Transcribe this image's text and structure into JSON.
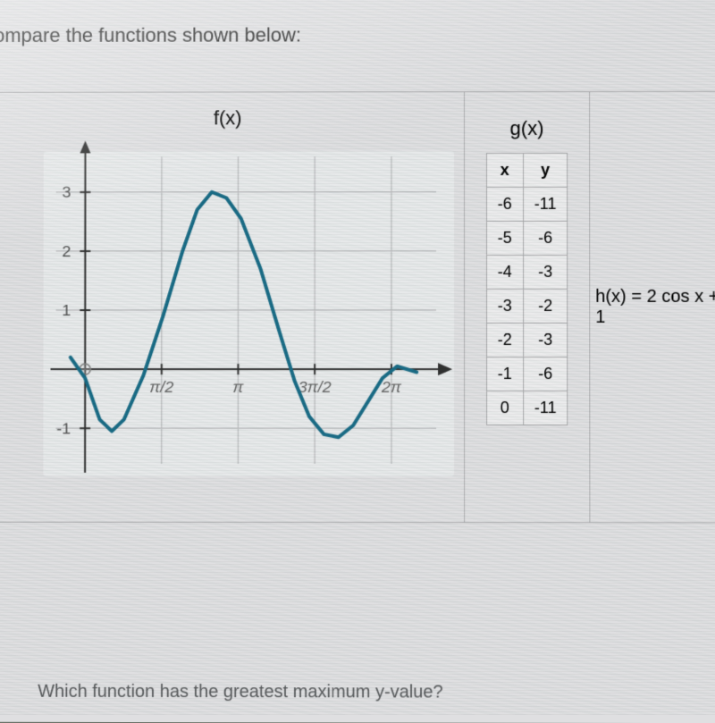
{
  "header_cut": "",
  "prompt": "ompare the functions shown below:",
  "question": "Which function has the greatest maximum y-value?",
  "fx": {
    "title": "f(x)",
    "chart": {
      "type": "line",
      "xlim": [
        -0.6,
        7.2
      ],
      "ylim": [
        -1.6,
        3.6
      ],
      "xticks": [
        {
          "pos": 1.5708,
          "label": "π/2"
        },
        {
          "pos": 3.1416,
          "label": "π"
        },
        {
          "pos": 4.7124,
          "label": "3π/2"
        },
        {
          "pos": 6.2832,
          "label": "2π"
        }
      ],
      "yticks": [
        {
          "pos": -1,
          "label": "-1"
        },
        {
          "pos": 1,
          "label": "1"
        },
        {
          "pos": 2,
          "label": "2"
        },
        {
          "pos": 3,
          "label": "3"
        }
      ],
      "curve_color": "#1b6f8a",
      "curve_width": 4,
      "grid_color": "#c5c6c8",
      "axis_color": "#333",
      "bg": "#eef0f1",
      "curve": [
        {
          "x": -0.3,
          "y": 0.2
        },
        {
          "x": 0.0,
          "y": -0.15
        },
        {
          "x": 0.3,
          "y": -0.85
        },
        {
          "x": 0.55,
          "y": -1.05
        },
        {
          "x": 0.8,
          "y": -0.85
        },
        {
          "x": 1.2,
          "y": -0.1
        },
        {
          "x": 1.6,
          "y": 0.9
        },
        {
          "x": 2.0,
          "y": 2.0
        },
        {
          "x": 2.3,
          "y": 2.7
        },
        {
          "x": 2.6,
          "y": 3.0
        },
        {
          "x": 2.9,
          "y": 2.9
        },
        {
          "x": 3.2,
          "y": 2.55
        },
        {
          "x": 3.6,
          "y": 1.7
        },
        {
          "x": 4.0,
          "y": 0.6
        },
        {
          "x": 4.3,
          "y": -0.2
        },
        {
          "x": 4.6,
          "y": -0.8
        },
        {
          "x": 4.9,
          "y": -1.1
        },
        {
          "x": 5.2,
          "y": -1.15
        },
        {
          "x": 5.5,
          "y": -0.95
        },
        {
          "x": 5.8,
          "y": -0.55
        },
        {
          "x": 6.1,
          "y": -0.15
        },
        {
          "x": 6.4,
          "y": 0.05
        },
        {
          "x": 6.8,
          "y": -0.05
        }
      ]
    }
  },
  "gx": {
    "title": "g(x)",
    "columns": [
      "x",
      "y"
    ],
    "rows": [
      [
        "-6",
        "-11"
      ],
      [
        "-5",
        "-6"
      ],
      [
        "-4",
        "-3"
      ],
      [
        "-3",
        "-2"
      ],
      [
        "-2",
        "-3"
      ],
      [
        "-1",
        "-6"
      ],
      [
        "0",
        "-11"
      ]
    ]
  },
  "hx": {
    "formula": "h(x) = 2 cos x + 1"
  }
}
